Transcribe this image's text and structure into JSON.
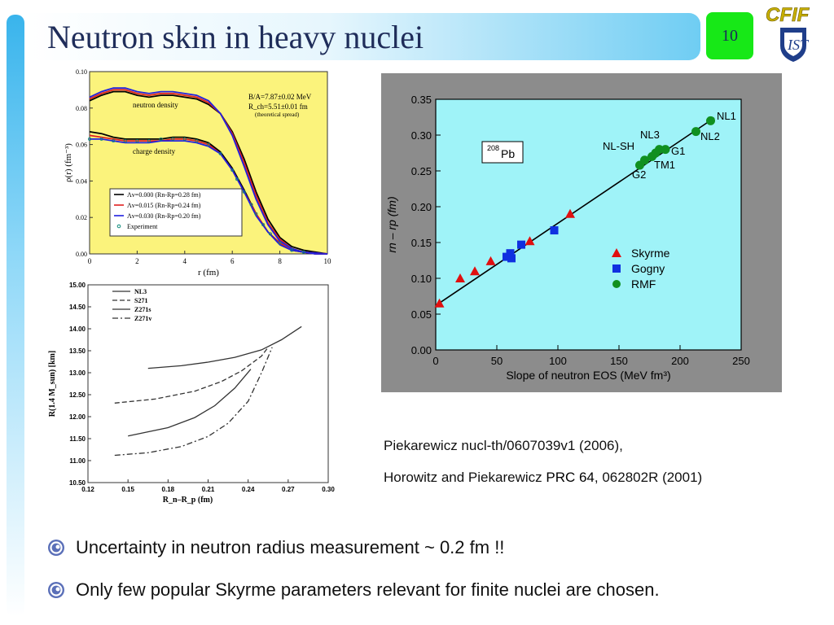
{
  "slide": {
    "title": "Neutron skin in heavy nuclei",
    "page_number": "10",
    "logo_text": "CFIF",
    "references": [
      {
        "a": "Piekarewicz nucl-th/0607039v1 (2006),",
        "b": ""
      },
      {
        "a": "Horowitz and Piekarewicz ",
        "b": "PRC 64",
        "c": ", 062802R (2001)"
      }
    ],
    "bullets": [
      "Uncertainty in neutron radius measurement ~ 0.2 fm !!",
      "Only few popular Skyrme parameters relevant for finite nuclei are chosen."
    ],
    "colors": {
      "accent": "#39b4ec",
      "page_badge": "#17e817",
      "title": "#1f2d5a"
    }
  },
  "chart_data": [
    {
      "type": "line",
      "ylabel": "ρ(r) (fm⁻³)",
      "xlabel": "r (fm)",
      "xlim": [
        0,
        10
      ],
      "ylim": [
        0,
        0.1
      ],
      "xticks": [
        "0",
        "2",
        "4",
        "6",
        "8",
        "10"
      ],
      "yticks": [
        "0.00",
        "0.02",
        "0.04",
        "0.06",
        "0.08",
        "0.10"
      ],
      "annotations": [
        "B/A=7.87±0.02 MeV",
        "R_ch=5.51±0.01 fm",
        "(theoretical spread)",
        "neutron density",
        "charge density"
      ],
      "legend": [
        "Λv=0.000 (Rn-Rp=0.28 fm)",
        "Λv=0.015 (Rn-Rp=0.24 fm)",
        "Λv=0.030 (Rn-Rp=0.20 fm)",
        "Experiment"
      ],
      "colors": [
        "#000000",
        "#e02020",
        "#2020e0",
        "#0a8a7a"
      ],
      "series": [
        {
          "name": "Λv=0.000 (Rn-Rp=0.28 fm)",
          "x": [
            0,
            0.5,
            1,
            1.5,
            2,
            2.5,
            3,
            3.5,
            4,
            4.5,
            5,
            5.5,
            6,
            6.5,
            7,
            7.5,
            8,
            8.5,
            9,
            9.5,
            10
          ],
          "y": [
            0.084,
            0.087,
            0.089,
            0.089,
            0.087,
            0.086,
            0.087,
            0.087,
            0.086,
            0.085,
            0.082,
            0.077,
            0.067,
            0.052,
            0.034,
            0.019,
            0.009,
            0.004,
            0.002,
            0.001,
            0.0
          ]
        },
        {
          "name": "Λv=0.015 (Rn-Rp=0.24 fm)",
          "x": [
            0,
            0.5,
            1,
            1.5,
            2,
            2.5,
            3,
            3.5,
            4,
            4.5,
            5,
            5.5,
            6,
            6.5,
            7,
            7.5,
            8,
            8.5,
            9,
            9.5,
            10
          ],
          "y": [
            0.085,
            0.088,
            0.09,
            0.09,
            0.088,
            0.087,
            0.088,
            0.088,
            0.087,
            0.086,
            0.083,
            0.077,
            0.066,
            0.05,
            0.032,
            0.017,
            0.008,
            0.003,
            0.001,
            0.0005,
            0.0
          ]
        },
        {
          "name": "Λv=0.030 (Rn-Rp=0.20 fm)",
          "x": [
            0,
            0.5,
            1,
            1.5,
            2,
            2.5,
            3,
            3.5,
            4,
            4.5,
            5,
            5.5,
            6,
            6.5,
            7,
            7.5,
            8,
            8.5,
            9,
            9.5,
            10
          ],
          "y": [
            0.086,
            0.089,
            0.091,
            0.091,
            0.089,
            0.088,
            0.089,
            0.089,
            0.088,
            0.087,
            0.084,
            0.077,
            0.065,
            0.048,
            0.03,
            0.016,
            0.007,
            0.003,
            0.001,
            0.0005,
            0.0
          ]
        },
        {
          "name": "charge Λv=0.000",
          "x": [
            0,
            0.5,
            1,
            1.5,
            2,
            2.5,
            3,
            3.5,
            4,
            4.5,
            5,
            5.5,
            6,
            6.5,
            7,
            7.5,
            8,
            8.5,
            9,
            9.5,
            10
          ],
          "y": [
            0.067,
            0.066,
            0.064,
            0.063,
            0.063,
            0.063,
            0.063,
            0.064,
            0.064,
            0.063,
            0.061,
            0.056,
            0.047,
            0.035,
            0.022,
            0.012,
            0.006,
            0.002,
            0.001,
            0.0,
            0.0
          ]
        },
        {
          "name": "charge Λv=0.015",
          "x": [
            0,
            0.5,
            1,
            1.5,
            2,
            2.5,
            3,
            3.5,
            4,
            4.5,
            5,
            5.5,
            6,
            6.5,
            7,
            7.5,
            8,
            8.5,
            9,
            9.5,
            10
          ],
          "y": [
            0.065,
            0.064,
            0.063,
            0.062,
            0.062,
            0.062,
            0.062,
            0.063,
            0.063,
            0.062,
            0.06,
            0.055,
            0.046,
            0.034,
            0.022,
            0.012,
            0.006,
            0.002,
            0.001,
            0.0,
            0.0
          ]
        },
        {
          "name": "charge Λv=0.030",
          "x": [
            0,
            0.5,
            1,
            1.5,
            2,
            2.5,
            3,
            3.5,
            4,
            4.5,
            5,
            5.5,
            6,
            6.5,
            7,
            7.5,
            8,
            8.5,
            9,
            9.5,
            10
          ],
          "y": [
            0.063,
            0.063,
            0.062,
            0.061,
            0.061,
            0.061,
            0.062,
            0.062,
            0.062,
            0.061,
            0.059,
            0.055,
            0.046,
            0.034,
            0.021,
            0.012,
            0.005,
            0.002,
            0.001,
            0.0,
            0.0
          ]
        },
        {
          "name": "Experiment",
          "x": [
            0,
            0.5,
            1,
            1.5,
            2,
            2.5,
            3,
            3.5,
            4,
            4.5,
            5,
            5.5,
            6,
            6.2,
            6.5,
            6.8,
            7,
            7.3,
            7.6,
            8,
            8.5,
            9
          ],
          "y": [
            0.063,
            0.063,
            0.062,
            0.062,
            0.062,
            0.062,
            0.063,
            0.063,
            0.063,
            0.062,
            0.06,
            0.055,
            0.046,
            0.041,
            0.034,
            0.027,
            0.022,
            0.016,
            0.011,
            0.006,
            0.002,
            0.001
          ]
        }
      ]
    },
    {
      "type": "line",
      "ylabel": "R(1.4 M_sun) [km]",
      "xlabel": "R_n–R_p (fm)",
      "xlim": [
        0.12,
        0.3
      ],
      "ylim": [
        10.5,
        15.0
      ],
      "xticks": [
        "0.12",
        "0.15",
        "0.18",
        "0.21",
        "0.24",
        "0.27",
        "0.30"
      ],
      "yticks": [
        "10.50",
        "11.00",
        "11.50",
        "12.00",
        "12.50",
        "13.00",
        "13.50",
        "14.00",
        "14.50",
        "15.00"
      ],
      "legend": [
        "NL3",
        "S271",
        "Z271s",
        "Z271v"
      ],
      "series": [
        {
          "name": "NL3",
          "x": [
            0.165,
            0.19,
            0.21,
            0.23,
            0.25,
            0.265,
            0.28
          ],
          "y": [
            13.1,
            13.16,
            13.24,
            13.35,
            13.52,
            13.75,
            14.05
          ]
        },
        {
          "name": "S271",
          "x": [
            0.14,
            0.17,
            0.2,
            0.22,
            0.235,
            0.25,
            0.255
          ],
          "y": [
            12.31,
            12.4,
            12.58,
            12.8,
            13.04,
            13.38,
            13.58
          ]
        },
        {
          "name": "Z271s",
          "x": [
            0.15,
            0.18,
            0.2,
            0.215,
            0.23,
            0.242
          ],
          "y": [
            11.56,
            11.75,
            11.98,
            12.25,
            12.65,
            13.08
          ]
        },
        {
          "name": "Z271v",
          "x": [
            0.14,
            0.165,
            0.19,
            0.21,
            0.225,
            0.24,
            0.25,
            0.258
          ],
          "y": [
            11.12,
            11.18,
            11.32,
            11.55,
            11.85,
            12.35,
            13.0,
            13.58
          ]
        }
      ]
    },
    {
      "type": "scatter",
      "xlabel": "Slope of neutron EOS (MeV fm³)",
      "ylabel": "rn – rp (fm)",
      "xlim": [
        0,
        250
      ],
      "ylim": [
        0,
        0.35
      ],
      "xticks": [
        "0",
        "50",
        "100",
        "150",
        "200",
        "250"
      ],
      "yticks": [
        "0.00",
        "0.05",
        "0.10",
        "0.15",
        "0.20",
        "0.25",
        "0.30",
        "0.35"
      ],
      "label_box": "208Pb",
      "legend": [
        "Skyrme",
        "Gogny",
        "RMF"
      ],
      "colors": {
        "Skyrme": "#e01010",
        "Gogny": "#1030e0",
        "RMF": "#109020",
        "plot_bg": "#9ff3f8",
        "frame_bg": "#8c8c8c"
      },
      "fit_line": {
        "x": [
          0,
          228
        ],
        "y": [
          0.062,
          0.324
        ]
      },
      "point_labels": [
        "NL1",
        "NL2",
        "NL3",
        "NL-SH",
        "G1",
        "TM1",
        "G2"
      ],
      "series": [
        {
          "name": "Skyrme",
          "x": [
            3,
            20,
            32,
            45,
            77,
            110
          ],
          "y": [
            0.065,
            0.1,
            0.11,
            0.124,
            0.152,
            0.19
          ]
        },
        {
          "name": "Gogny",
          "x": [
            58,
            61,
            62,
            70,
            97
          ],
          "y": [
            0.13,
            0.135,
            0.128,
            0.147,
            0.167
          ]
        },
        {
          "name": "RMF",
          "x": [
            167,
            171,
            177,
            180,
            183,
            188,
            213,
            225
          ],
          "y": [
            0.258,
            0.265,
            0.27,
            0.275,
            0.28,
            0.28,
            0.305,
            0.32
          ]
        }
      ]
    }
  ]
}
